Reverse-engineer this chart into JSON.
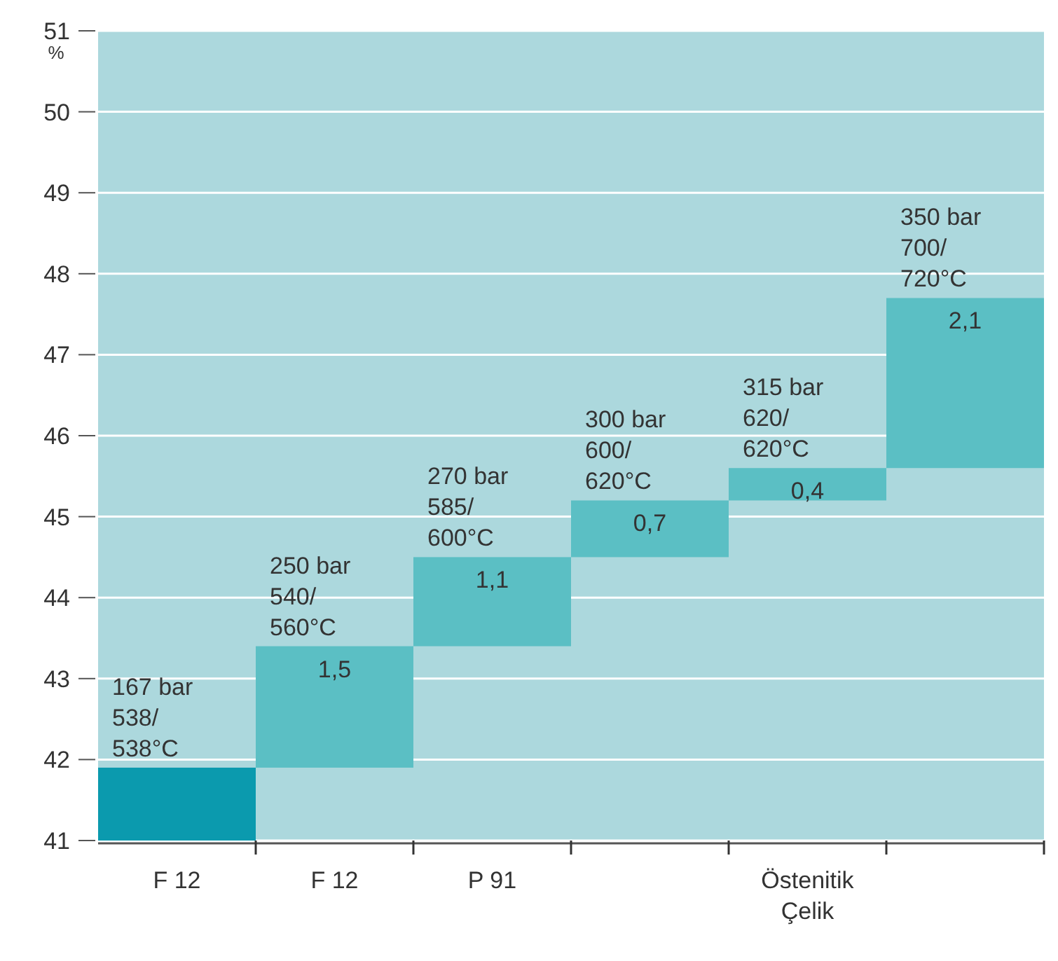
{
  "chart_data": {
    "type": "bar",
    "ylabel": "%",
    "categories": [
      "F 12",
      "F 12",
      "P 91",
      null,
      "Östenitik Çelik",
      null
    ],
    "values": [
      0.9,
      1.5,
      1.1,
      0.7,
      0.4,
      2.1
    ],
    "base": [
      41,
      41.9,
      43.4,
      44.5,
      45.2,
      45.6
    ],
    "colors": [
      "#0b9aae",
      "#5bbfc4",
      "#5bbfc4",
      "#5bbfc4",
      "#5bbfc4",
      "#5bbfc4"
    ],
    "value_labels": [
      null,
      "1,5",
      "1,1",
      "0,7",
      "0,4",
      "2,1"
    ],
    "ylim": [
      41,
      51
    ],
    "yticks": [
      41,
      42,
      43,
      44,
      45,
      46,
      47,
      48,
      49,
      50,
      51
    ],
    "grid": "y",
    "annotations": [
      "167 bar\n538/\n538°C",
      "250 bar\n540/\n560°C",
      "270 bar\n585/\n600°C",
      "300 bar\n600/\n620°C",
      "315 bar\n620/\n620°C",
      "350 bar\n700/\n720°C"
    ]
  }
}
